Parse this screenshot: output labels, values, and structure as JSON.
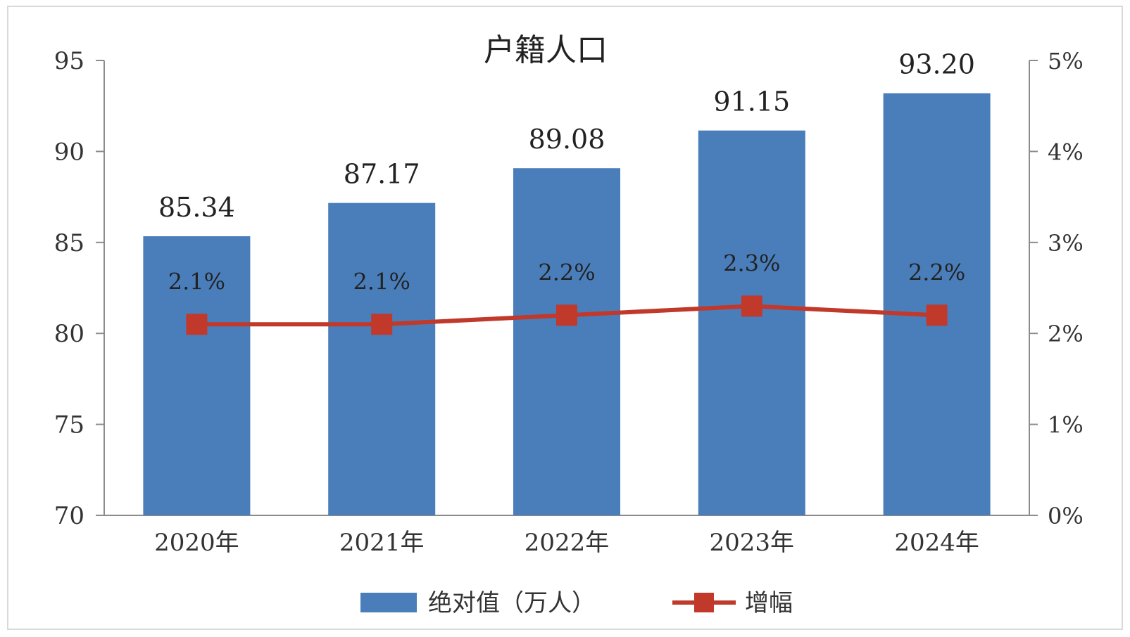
{
  "chart_data": {
    "type": "bar",
    "title": "户籍人口",
    "categories": [
      "2020年",
      "2021年",
      "2022年",
      "2023年",
      "2024年"
    ],
    "series": [
      {
        "name": "绝对值（万人）",
        "type": "bar",
        "axis": "left",
        "values": [
          85.34,
          87.17,
          89.08,
          91.15,
          93.2
        ],
        "labels": [
          "85.34",
          "87.17",
          "89.08",
          "91.15",
          "93.20"
        ],
        "color": "#4a7ebb"
      },
      {
        "name": "增幅",
        "type": "line",
        "axis": "right",
        "values": [
          2.1,
          2.1,
          2.2,
          2.3,
          2.2
        ],
        "labels": [
          "2.1%",
          "2.1%",
          "2.2%",
          "2.3%",
          "2.2%"
        ],
        "color": "#c0392b"
      }
    ],
    "y_left": {
      "ylim": [
        70,
        95
      ],
      "ticks": [
        "70",
        "75",
        "80",
        "85",
        "90",
        "95"
      ]
    },
    "y_right": {
      "ylim": [
        0,
        5
      ],
      "ticks": [
        "0%",
        "1%",
        "2%",
        "3%",
        "4%",
        "5%"
      ]
    },
    "grid": false,
    "legend_position": "bottom"
  }
}
